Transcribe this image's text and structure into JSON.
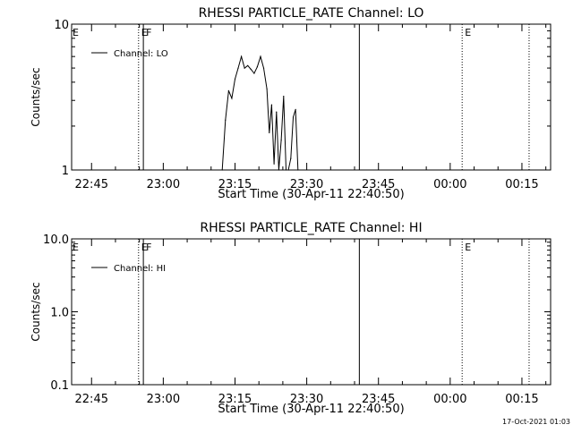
{
  "timestamp": "17-Oct-2021 01:03",
  "chart_data": [
    {
      "type": "line",
      "title": "RHESSI PARTICLE_RATE Channel: LO",
      "xlabel": "Start Time (30-Apr-11 22:40:50)",
      "ylabel": "Counts/sec",
      "yscale": "log",
      "ylim": [
        1,
        10
      ],
      "ytick_values": [
        1,
        10
      ],
      "ytick_labels": [
        "1",
        "10"
      ],
      "xlim": [
        "22:40:50",
        "00:21:00"
      ],
      "xtick_labels": [
        "22:45",
        "23:00",
        "23:15",
        "23:30",
        "23:45",
        "00:00",
        "00:15"
      ],
      "legend": {
        "position": "top-left",
        "entries": [
          "Channel: LO"
        ]
      },
      "grid": false,
      "markers": [
        {
          "time": "22:54:50",
          "label": "E",
          "style": "dotted"
        },
        {
          "time": "22:55:50",
          "label": "F",
          "style": "solid"
        },
        {
          "time": "23:41:00",
          "label": "",
          "style": "solid"
        },
        {
          "time": "00:02:30",
          "label": "E",
          "style": "dotted"
        },
        {
          "time": "00:16:30",
          "label": "",
          "style": "dotted"
        }
      ],
      "edge_markers": [
        "E"
      ],
      "series": [
        {
          "name": "Channel: LO",
          "x": [
            "23:12:20",
            "23:13:00",
            "23:13:40",
            "23:14:20",
            "23:15:00",
            "23:15:40",
            "23:16:20",
            "23:17:00",
            "23:17:40",
            "23:18:20",
            "23:19:00",
            "23:19:40",
            "23:20:20",
            "23:21:00",
            "23:21:40",
            "23:22:10",
            "23:22:40",
            "23:23:10",
            "23:23:40",
            "23:24:10",
            "23:24:40",
            "23:25:10",
            "23:25:40",
            "23:26:10",
            "23:26:40",
            "23:27:10",
            "23:27:40",
            "23:28:10"
          ],
          "y": [
            1.0,
            2.2,
            3.5,
            3.1,
            4.2,
            5.0,
            6.0,
            5.0,
            5.2,
            4.9,
            4.6,
            5.1,
            6.0,
            5.0,
            3.6,
            1.8,
            2.8,
            1.1,
            2.5,
            1.0,
            1.6,
            3.2,
            1.0,
            1.0,
            1.2,
            2.3,
            2.6,
            1.0
          ]
        }
      ]
    },
    {
      "type": "line",
      "title": "RHESSI PARTICLE_RATE Channel: HI",
      "xlabel": "Start Time (30-Apr-11 22:40:50)",
      "ylabel": "Counts/sec",
      "yscale": "log",
      "ylim": [
        0.1,
        10
      ],
      "ytick_values": [
        0.1,
        1,
        10
      ],
      "ytick_labels": [
        "0.1",
        "1.0",
        "10.0"
      ],
      "xlim": [
        "22:40:50",
        "00:21:00"
      ],
      "xtick_labels": [
        "22:45",
        "23:00",
        "23:15",
        "23:30",
        "23:45",
        "00:00",
        "00:15"
      ],
      "legend": {
        "position": "top-left",
        "entries": [
          "Channel: HI"
        ]
      },
      "grid": false,
      "markers": [
        {
          "time": "22:54:50",
          "label": "E",
          "style": "dotted"
        },
        {
          "time": "22:55:50",
          "label": "F",
          "style": "solid"
        },
        {
          "time": "23:41:00",
          "label": "",
          "style": "solid"
        },
        {
          "time": "00:02:30",
          "label": "E",
          "style": "dotted"
        },
        {
          "time": "00:16:30",
          "label": "",
          "style": "dotted"
        }
      ],
      "edge_markers": [
        "E"
      ],
      "series": [
        {
          "name": "Channel: HI",
          "x": [],
          "y": []
        }
      ]
    }
  ]
}
